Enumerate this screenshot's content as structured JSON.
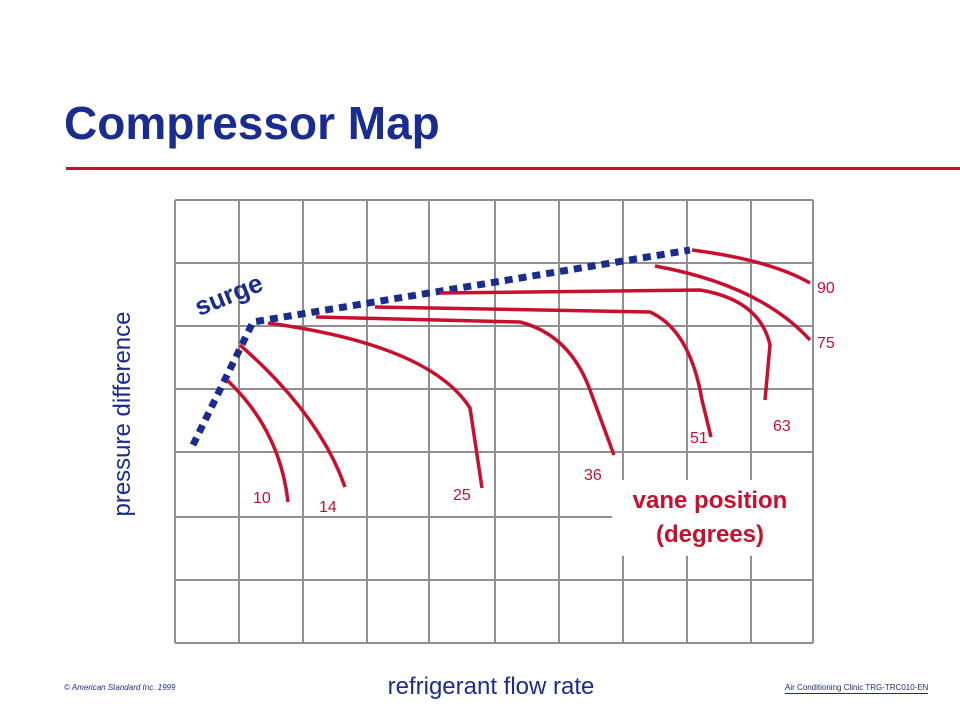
{
  "title": "Compressor Map",
  "ylabel": "pressure difference",
  "xlabel": "refrigerant flow rate",
  "surge_label": "surge",
  "legend": {
    "line1": "vane position",
    "line2": "(degrees)"
  },
  "vane_labels": [
    "10",
    "14",
    "25",
    "36",
    "51",
    "63",
    "75",
    "90"
  ],
  "footer": {
    "copyright": "© American Standard Inc. 1999",
    "course": "Air Conditioning Clinic TRG-TRC010-EN"
  },
  "colors": {
    "title": "#1a2c8f",
    "rule": "#c8102e",
    "curve": "#c8102e",
    "surge": "#1a2c8f",
    "label": "#c8102e",
    "grid": "#909090"
  }
}
